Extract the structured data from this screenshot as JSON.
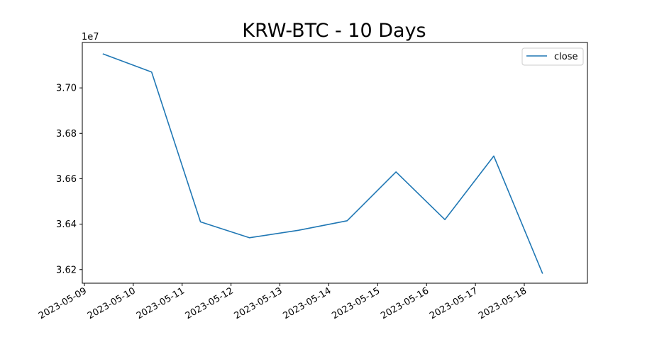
{
  "chart_data": {
    "type": "line",
    "title": "KRW-BTC - 10 Days",
    "xlabel": "",
    "ylabel": "",
    "y_offset_label": "1e7",
    "x_tick_labels": [
      "2023-05-09",
      "2023-05-10",
      "2023-05-11",
      "2023-05-12",
      "2023-05-13",
      "2023-05-14",
      "2023-05-15",
      "2023-05-16",
      "2023-05-17",
      "2023-05-18"
    ],
    "y_tick_labels": [
      "3.62",
      "3.64",
      "3.66",
      "3.68",
      "3.70"
    ],
    "y_ticks": [
      36200000,
      36400000,
      36600000,
      36800000,
      37000000
    ],
    "xlim": [
      "2023-05-08T22:58",
      "2023-05-19T07:00"
    ],
    "ylim": [
      36140000,
      37200000
    ],
    "legend_position": "top-right",
    "grid": false,
    "series": [
      {
        "name": "close",
        "color": "#1f77b4",
        "x": [
          "2023-05-09T09:00",
          "2023-05-10T09:00",
          "2023-05-11T09:00",
          "2023-05-12T09:00",
          "2023-05-13T09:00",
          "2023-05-14T09:00",
          "2023-05-15T09:00",
          "2023-05-16T09:00",
          "2023-05-17T09:00",
          "2023-05-18T09:00"
        ],
        "y": [
          37150000,
          37070000,
          36410000,
          36340000,
          36373000,
          36415000,
          36630000,
          36420000,
          36700000,
          36182000
        ]
      }
    ]
  }
}
